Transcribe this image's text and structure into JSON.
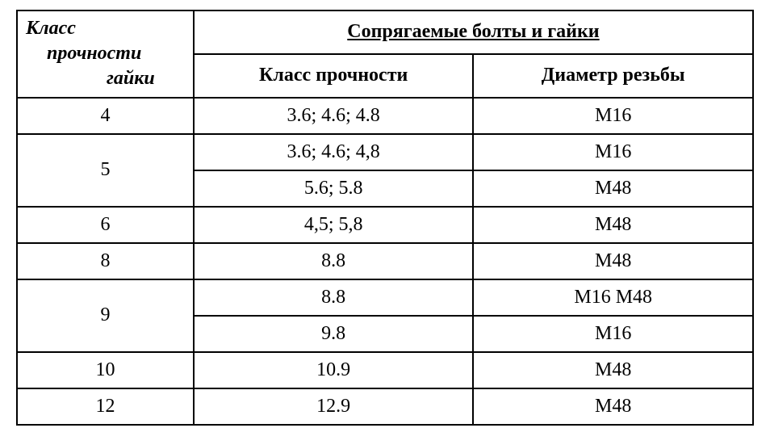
{
  "table": {
    "headers": {
      "nut_class_line1": "Класс",
      "nut_class_line2": "прочности",
      "nut_class_line3": "гайки",
      "main_header": "Сопрягаемые болты и гайки",
      "sub_strength": "Класс прочности",
      "sub_diameter": "Диаметр резьбы"
    },
    "rows": [
      {
        "nut_class": "4",
        "rowspan": 1,
        "strength": "3.6; 4.6; 4.8",
        "diameter": "M16"
      },
      {
        "nut_class": "5",
        "rowspan": 2,
        "strength": "3.6; 4.6; 4,8",
        "diameter": "M16"
      },
      {
        "nut_class": null,
        "rowspan": 0,
        "strength": "5.6; 5.8",
        "diameter": "M48"
      },
      {
        "nut_class": "6",
        "rowspan": 1,
        "strength": "4,5; 5,8",
        "diameter": "M48"
      },
      {
        "nut_class": "8",
        "rowspan": 1,
        "strength": "8.8",
        "diameter": "M48"
      },
      {
        "nut_class": "9",
        "rowspan": 2,
        "strength": "8.8",
        "diameter": "M16 M48"
      },
      {
        "nut_class": null,
        "rowspan": 0,
        "strength": "9.8",
        "diameter": "M16"
      },
      {
        "nut_class": "10",
        "rowspan": 1,
        "strength": "10.9",
        "diameter": "M48"
      },
      {
        "nut_class": "12",
        "rowspan": 1,
        "strength": "12.9",
        "diameter": "M48"
      }
    ],
    "column_widths": {
      "nut_class": "24%",
      "strength": "38%",
      "diameter": "38%"
    }
  }
}
